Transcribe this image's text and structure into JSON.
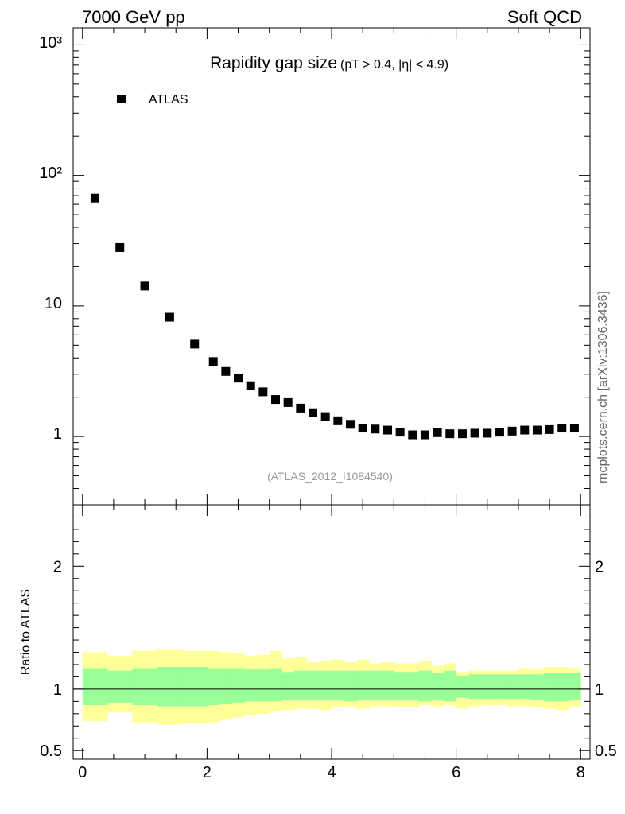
{
  "header": {
    "left": "7000 GeV pp",
    "right": "Soft QCD"
  },
  "side_label": "mcplots.cern.ch [arXiv:1306.3436]",
  "chart_data": {
    "type": "scatter",
    "title": "Rapidity gap size",
    "subtitle": "(pT > 0.4, |η| < 4.9)",
    "watermark": "(ATLAS_2012_I1084540)",
    "legend": "ATLAS",
    "main_panel": {
      "yscale": "log",
      "ylim": [
        0.3,
        1350
      ],
      "xlim": [
        -0.15,
        8.15
      ],
      "y_tick_labels": [
        "10³",
        "10²",
        "10",
        "1"
      ],
      "series": [
        {
          "name": "ATLAS",
          "x": [
            0.2,
            0.6,
            1.0,
            1.4,
            1.8,
            2.1,
            2.3,
            2.5,
            2.7,
            2.9,
            3.1,
            3.3,
            3.5,
            3.7,
            3.9,
            4.1,
            4.3,
            4.5,
            4.7,
            4.9,
            5.1,
            5.3,
            5.5,
            5.7,
            5.9,
            6.1,
            6.3,
            6.5,
            6.7,
            6.9,
            7.1,
            7.3,
            7.5,
            7.7,
            7.9
          ],
          "y": [
            67,
            28,
            14.2,
            8.2,
            5.1,
            3.75,
            3.15,
            2.8,
            2.45,
            2.2,
            1.92,
            1.82,
            1.65,
            1.52,
            1.42,
            1.32,
            1.24,
            1.16,
            1.14,
            1.12,
            1.08,
            1.03,
            1.03,
            1.07,
            1.05,
            1.05,
            1.06,
            1.06,
            1.08,
            1.1,
            1.12,
            1.12,
            1.13,
            1.16,
            1.16
          ]
        }
      ]
    },
    "ratio_panel": {
      "ylabel": "Ratio to ATLAS",
      "ylim": [
        0.43,
        2.5
      ],
      "y_ticks": [
        0.5,
        1,
        2
      ],
      "y_tick_labels": [
        "0.5",
        "1",
        "2"
      ],
      "x_ticks": [
        0,
        2,
        4,
        6,
        8
      ],
      "x_tick_labels": [
        "0",
        "2",
        "4",
        "6",
        "8"
      ],
      "bin_edges": [
        0,
        0.4,
        0.8,
        1.2,
        1.6,
        2.0,
        2.2,
        2.4,
        2.6,
        2.8,
        3.0,
        3.2,
        3.4,
        3.6,
        3.8,
        4.0,
        4.2,
        4.4,
        4.6,
        4.8,
        5.0,
        5.2,
        5.4,
        5.6,
        5.8,
        6.0,
        6.2,
        6.4,
        6.6,
        6.8,
        7.0,
        7.2,
        7.4,
        7.6,
        7.8,
        8.0
      ],
      "green_hi": [
        1.17,
        1.15,
        1.17,
        1.18,
        1.18,
        1.17,
        1.17,
        1.17,
        1.16,
        1.16,
        1.17,
        1.14,
        1.15,
        1.15,
        1.15,
        1.15,
        1.15,
        1.15,
        1.15,
        1.15,
        1.14,
        1.14,
        1.15,
        1.13,
        1.15,
        1.11,
        1.12,
        1.12,
        1.12,
        1.12,
        1.12,
        1.12,
        1.13,
        1.13,
        1.13
      ],
      "green_lo": [
        0.87,
        0.89,
        0.87,
        0.86,
        0.86,
        0.87,
        0.88,
        0.89,
        0.9,
        0.9,
        0.9,
        0.91,
        0.91,
        0.91,
        0.91,
        0.91,
        0.9,
        0.91,
        0.91,
        0.91,
        0.91,
        0.91,
        0.9,
        0.91,
        0.9,
        0.93,
        0.92,
        0.92,
        0.92,
        0.92,
        0.92,
        0.91,
        0.9,
        0.9,
        0.91
      ],
      "yellow_hi": [
        1.3,
        1.27,
        1.31,
        1.32,
        1.31,
        1.31,
        1.3,
        1.29,
        1.27,
        1.28,
        1.31,
        1.25,
        1.26,
        1.22,
        1.23,
        1.24,
        1.22,
        1.24,
        1.21,
        1.22,
        1.21,
        1.21,
        1.23,
        1.19,
        1.21,
        1.14,
        1.15,
        1.15,
        1.15,
        1.15,
        1.17,
        1.16,
        1.18,
        1.18,
        1.17
      ],
      "yellow_lo": [
        0.74,
        0.81,
        0.73,
        0.71,
        0.72,
        0.73,
        0.75,
        0.77,
        0.79,
        0.8,
        0.82,
        0.83,
        0.84,
        0.84,
        0.83,
        0.85,
        0.86,
        0.84,
        0.86,
        0.86,
        0.85,
        0.85,
        0.87,
        0.86,
        0.87,
        0.84,
        0.86,
        0.87,
        0.87,
        0.86,
        0.86,
        0.85,
        0.84,
        0.83,
        0.86
      ],
      "reference_line": 1,
      "colors": {
        "green": "#99ff99",
        "yellow": "#ffff99"
      }
    }
  }
}
